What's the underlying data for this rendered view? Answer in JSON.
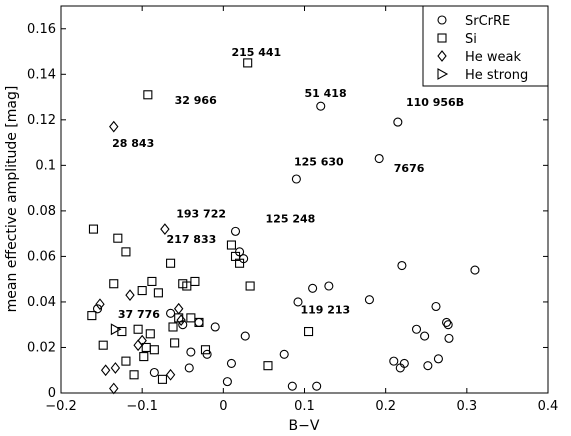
{
  "chart_data": {
    "type": "scatter",
    "xlabel": "B−V",
    "ylabel": "mean effective amplitude [mag]",
    "xlim": [
      -0.2,
      0.4
    ],
    "ylim": [
      0,
      0.17
    ],
    "xticks": [
      -0.2,
      -0.1,
      0,
      0.1,
      0.2,
      0.3,
      0.4
    ],
    "xtick_labels": [
      "−0.2",
      "−0.1",
      "0",
      "0.1",
      "0.2",
      "0.3",
      "0.4"
    ],
    "yticks": [
      0,
      0.02,
      0.04,
      0.06,
      0.08,
      0.1,
      0.12,
      0.14,
      0.16
    ],
    "ytick_labels": [
      "0",
      "0.02",
      "0.04",
      "0.06",
      "0.08",
      "0.1",
      "0.12",
      "0.14",
      "0.16"
    ],
    "grid": false,
    "legend_position": "top-right",
    "series": [
      {
        "name": "SrCrRE",
        "marker": "circle",
        "x": [
          -0.155,
          -0.085,
          -0.065,
          -0.05,
          -0.042,
          -0.04,
          -0.03,
          -0.02,
          -0.01,
          0.005,
          0.01,
          0.015,
          0.02,
          0.025,
          0.027,
          0.075,
          0.085,
          0.09,
          0.092,
          0.11,
          0.115,
          0.12,
          0.13,
          0.18,
          0.192,
          0.21,
          0.215,
          0.218,
          0.22,
          0.223,
          0.238,
          0.248,
          0.252,
          0.262,
          0.265,
          0.275,
          0.277,
          0.278,
          0.31
        ],
        "y": [
          0.037,
          0.009,
          0.035,
          0.03,
          0.011,
          0.018,
          0.031,
          0.017,
          0.029,
          0.005,
          0.013,
          0.071,
          0.062,
          0.059,
          0.025,
          0.017,
          0.003,
          0.094,
          0.04,
          0.046,
          0.003,
          0.126,
          0.047,
          0.041,
          0.103,
          0.014,
          0.119,
          0.011,
          0.056,
          0.013,
          0.028,
          0.025,
          0.012,
          0.038,
          0.015,
          0.031,
          0.03,
          0.024,
          0.054
        ]
      },
      {
        "name": "Si",
        "marker": "square",
        "x": [
          -0.16,
          -0.162,
          -0.148,
          -0.135,
          -0.13,
          -0.125,
          -0.12,
          -0.12,
          -0.11,
          -0.105,
          -0.1,
          -0.098,
          -0.095,
          -0.093,
          -0.09,
          -0.088,
          -0.085,
          -0.08,
          -0.075,
          -0.065,
          -0.062,
          -0.06,
          -0.055,
          -0.05,
          -0.045,
          -0.04,
          -0.035,
          -0.03,
          -0.022,
          0.01,
          0.015,
          0.02,
          0.03,
          0.033,
          0.055,
          0.105
        ],
        "y": [
          0.072,
          0.034,
          0.021,
          0.048,
          0.068,
          0.027,
          0.014,
          0.062,
          0.008,
          0.028,
          0.045,
          0.016,
          0.02,
          0.131,
          0.026,
          0.049,
          0.019,
          0.044,
          0.006,
          0.057,
          0.029,
          0.022,
          0.033,
          0.048,
          0.047,
          0.033,
          0.049,
          0.031,
          0.019,
          0.065,
          0.06,
          0.057,
          0.145,
          0.047,
          0.012,
          0.027
        ]
      },
      {
        "name": "He weak",
        "marker": "diamond",
        "x": [
          -0.152,
          -0.145,
          -0.135,
          -0.133,
          -0.135,
          -0.115,
          -0.105,
          -0.1,
          -0.072,
          -0.055,
          -0.052,
          -0.065
        ],
        "y": [
          0.039,
          0.01,
          0.117,
          0.011,
          0.002,
          0.043,
          0.021,
          0.023,
          0.072,
          0.037,
          0.032,
          0.008
        ]
      },
      {
        "name": "He strong",
        "marker": "triangle-right",
        "x": [
          -0.133
        ],
        "y": [
          0.028
        ]
      }
    ],
    "annotations": [
      {
        "text": "215 441",
        "x": 0.01,
        "y": 0.148
      },
      {
        "text": "32 966",
        "x": -0.06,
        "y": 0.127
      },
      {
        "text": "51 418",
        "x": 0.1,
        "y": 0.13
      },
      {
        "text": "110 956B",
        "x": 0.225,
        "y": 0.126
      },
      {
        "text": "28 843",
        "x": -0.137,
        "y": 0.108
      },
      {
        "text": "125 630",
        "x": 0.087,
        "y": 0.1
      },
      {
        "text": "7676",
        "x": 0.21,
        "y": 0.097
      },
      {
        "text": "193 722",
        "x": -0.058,
        "y": 0.077
      },
      {
        "text": "125 248",
        "x": 0.052,
        "y": 0.075
      },
      {
        "text": "217 833",
        "x": -0.07,
        "y": 0.066
      },
      {
        "text": "119 213",
        "x": 0.095,
        "y": 0.035
      },
      {
        "text": "37 776",
        "x": -0.13,
        "y": 0.033
      }
    ]
  }
}
